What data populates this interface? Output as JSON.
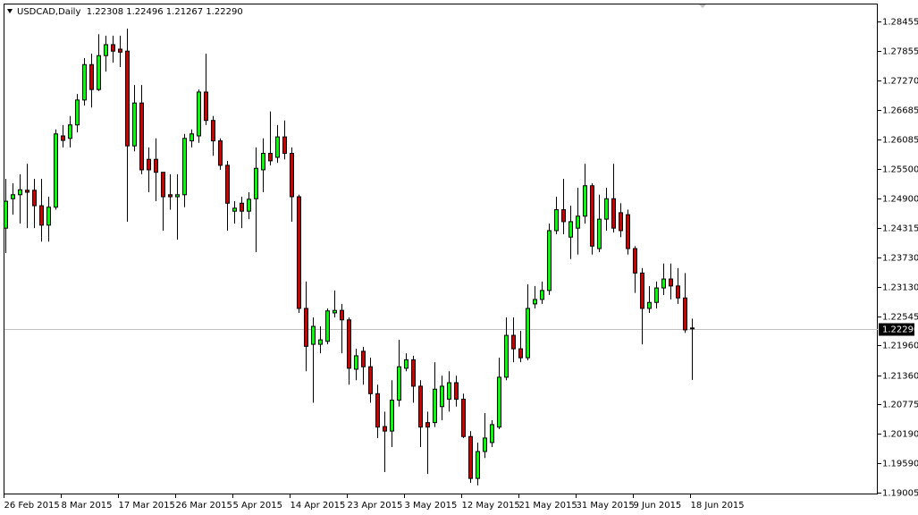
{
  "chart_data": {
    "type": "candlestick",
    "title": "USDCAD,Daily  1.22308 1.22496 1.21267 1.22290",
    "categories": [
      "26 Feb 2015",
      null,
      null,
      null,
      null,
      null,
      null,
      null,
      "8 Mar 2015",
      null,
      null,
      null,
      null,
      null,
      null,
      null,
      "17 Mar 2015",
      null,
      null,
      null,
      null,
      null,
      null,
      null,
      "26 Mar 2015",
      null,
      null,
      null,
      null,
      null,
      null,
      null,
      "5 Apr 2015",
      null,
      null,
      null,
      null,
      null,
      null,
      null,
      "14 Apr 2015",
      null,
      null,
      null,
      null,
      null,
      null,
      null,
      "23 Apr 2015",
      null,
      null,
      null,
      null,
      null,
      null,
      null,
      "3 May 2015",
      null,
      null,
      null,
      null,
      null,
      null,
      null,
      "12 May 2015",
      null,
      null,
      null,
      null,
      null,
      null,
      null,
      "21 May 2015",
      null,
      null,
      null,
      null,
      null,
      null,
      null,
      "31 May 2015",
      null,
      null,
      null,
      null,
      null,
      null,
      null,
      "9 Jun 2015",
      null,
      null,
      null,
      null,
      null,
      null,
      null,
      "18 Jun 2015"
    ],
    "open": [
      1.2431,
      1.249,
      1.2498,
      1.2507,
      1.2507,
      1.2476,
      1.2437,
      1.2473,
      1.2616,
      1.2611,
      1.2638,
      1.2688,
      1.2759,
      1.2709,
      1.2777,
      1.2799,
      1.279,
      1.2786,
      1.2596,
      1.2682,
      1.2569,
      1.2569,
      1.2543,
      1.2498,
      1.2494,
      1.2498,
      1.2606,
      1.2616,
      1.2704,
      1.2647,
      1.2606,
      1.2557,
      1.2465,
      1.2481,
      1.2465,
      1.249,
      1.2548,
      1.2581,
      1.2573,
      1.2614,
      1.2581,
      1.2494,
      1.227,
      1.2198,
      1.2198,
      1.2204,
      1.2261,
      1.2266,
      1.2247,
      1.2148,
      1.2184,
      1.2153,
      1.2099,
      1.2033,
      1.2024,
      1.2086,
      1.215,
      1.2167,
      1.2114,
      1.2041,
      1.2041,
      1.2073,
      1.2088,
      1.2121,
      1.2088,
      1.2013,
      1.1929,
      1.1983,
      1.2001,
      1.2032,
      1.2132,
      1.2216,
      1.2189,
      1.2171,
      1.2279,
      1.2288,
      1.2306,
      1.2426,
      1.2468,
      1.2413,
      1.2431,
      1.2455,
      1.2516,
      1.239,
      1.2449,
      1.249,
      1.2462,
      1.2458,
      1.239,
      1.2341,
      1.227,
      1.2282,
      1.2311,
      1.2329,
      1.2315,
      1.2291,
      1.22308
    ],
    "high": [
      1.253,
      1.2521,
      1.2539,
      1.256,
      1.253,
      1.253,
      1.2494,
      1.2629,
      1.2638,
      1.2656,
      1.27,
      1.2772,
      1.2781,
      1.282,
      1.2817,
      1.2817,
      1.2817,
      1.2831,
      1.2718,
      1.2718,
      1.2593,
      1.2611,
      1.2543,
      1.2539,
      1.2539,
      1.262,
      1.2629,
      1.2709,
      1.2781,
      1.2656,
      1.2611,
      1.2566,
      1.2485,
      1.2494,
      1.2503,
      1.2593,
      1.2611,
      1.2665,
      1.2638,
      1.2647,
      1.2593,
      1.2498,
      1.2324,
      1.2252,
      1.2234,
      1.227,
      1.2306,
      1.2279,
      1.2252,
      1.2189,
      1.2193,
      1.2171,
      1.2117,
      1.2063,
      1.2126,
      1.2207,
      1.218,
      1.2175,
      1.2126,
      1.2063,
      1.2162,
      1.2135,
      1.2144,
      1.2135,
      1.2099,
      1.2024,
      1.2001,
      1.206,
      1.2046,
      1.2171,
      1.2252,
      1.2252,
      1.2225,
      1.2318,
      1.2315,
      1.2324,
      1.244,
      1.2494,
      1.253,
      1.2476,
      1.2512,
      1.256,
      1.2521,
      1.2498,
      1.2512,
      1.256,
      1.2481,
      1.2468,
      1.2395,
      1.2351,
      1.2315,
      1.2324,
      1.236,
      1.236,
      1.2351,
      1.2341,
      1.22496
    ],
    "low": [
      1.2381,
      1.2458,
      1.244,
      1.2431,
      1.2431,
      1.2404,
      1.2404,
      1.2468,
      1.2593,
      1.2593,
      1.2623,
      1.2677,
      1.2673,
      1.2706,
      1.2745,
      1.2763,
      1.2754,
      1.2444,
      1.2585,
      1.2539,
      1.2503,
      1.2485,
      1.2426,
      1.2468,
      1.2408,
      1.2473,
      1.2593,
      1.2602,
      1.2638,
      1.2576,
      1.2548,
      1.2426,
      1.244,
      1.2431,
      1.2449,
      1.2383,
      1.2503,
      1.2557,
      1.2562,
      1.2569,
      1.2444,
      1.2261,
      1.2144,
      1.2081,
      1.218,
      1.2198,
      1.2252,
      1.218,
      1.2117,
      1.2126,
      1.2117,
      1.2081,
      1.201,
      1.1942,
      1.1992,
      1.2073,
      1.2144,
      1.2081,
      1.1992,
      1.1938,
      1.2032,
      1.2046,
      1.2063,
      1.2073,
      1.201,
      1.192,
      1.1915,
      1.197,
      1.1992,
      1.2028,
      1.2126,
      1.2162,
      1.2162,
      1.2166,
      1.227,
      1.2279,
      1.2297,
      1.2419,
      1.2419,
      1.2369,
      1.2378,
      1.244,
      1.2378,
      1.2383,
      1.2426,
      1.2422,
      1.2413,
      1.2378,
      1.2301,
      1.2198,
      1.2261,
      1.227,
      1.2297,
      1.2288,
      1.2279,
      1.2221,
      1.21267
    ],
    "close": [
      1.2485,
      1.2498,
      1.2508,
      1.2503,
      1.2476,
      1.2437,
      1.2473,
      1.262,
      1.2607,
      1.2638,
      1.2688,
      1.2759,
      1.2709,
      1.2777,
      1.2799,
      1.2786,
      1.2784,
      1.2596,
      1.2682,
      1.2548,
      1.2548,
      1.2543,
      1.2494,
      1.2494,
      1.2498,
      1.2611,
      1.262,
      1.2704,
      1.2647,
      1.2606,
      1.2557,
      1.2481,
      1.2471,
      1.2465,
      1.2489,
      1.2551,
      1.2581,
      1.2566,
      1.2614,
      1.2581,
      1.2494,
      1.227,
      1.2194,
      1.2234,
      1.2207,
      1.2265,
      1.2266,
      1.2247,
      1.215,
      1.2175,
      1.2153,
      1.2099,
      1.2032,
      1.2024,
      1.2086,
      1.2153,
      1.2167,
      1.2114,
      1.2032,
      1.2032,
      1.2108,
      1.2114,
      1.2121,
      1.2088,
      1.2013,
      1.1929,
      1.1983,
      1.201,
      1.2037,
      1.2132,
      1.2216,
      1.2189,
      1.2171,
      1.227,
      1.2288,
      1.2306,
      1.2426,
      1.2468,
      1.2444,
      1.2444,
      1.2455,
      1.2516,
      1.2395,
      1.2449,
      1.249,
      1.2431,
      1.2426,
      1.239,
      1.2341,
      1.227,
      1.2282,
      1.2311,
      1.2329,
      1.2315,
      1.2291,
      1.2227,
      1.2229
    ],
    "up_color": "#00ff00",
    "down_color": "#cc0000",
    "ylim": [
      1.18969,
      1.28814
    ],
    "yticks": [
      1.28455,
      1.27855,
      {
        "value": 1.2727,
        "label": "1.27270"
      },
      1.26685,
      1.26085,
      {
        "value": 1.255,
        "label": "1.25500"
      },
      {
        "value": 1.249,
        "label": "1.24900"
      },
      1.24315,
      {
        "value": 1.2373,
        "label": "1.23730"
      },
      {
        "value": 1.2313,
        "label": "1.23130"
      },
      1.22545,
      {
        "value": 1.2196,
        "label": "1.21960"
      },
      {
        "value": 1.2136,
        "label": "1.21360"
      },
      1.20775,
      {
        "value": 1.2019,
        "label": "1.20190"
      },
      {
        "value": 1.1959,
        "label": "1.19590"
      },
      1.19005
    ],
    "price_marker": {
      "value": 1.2229,
      "label": "1.22290"
    }
  }
}
